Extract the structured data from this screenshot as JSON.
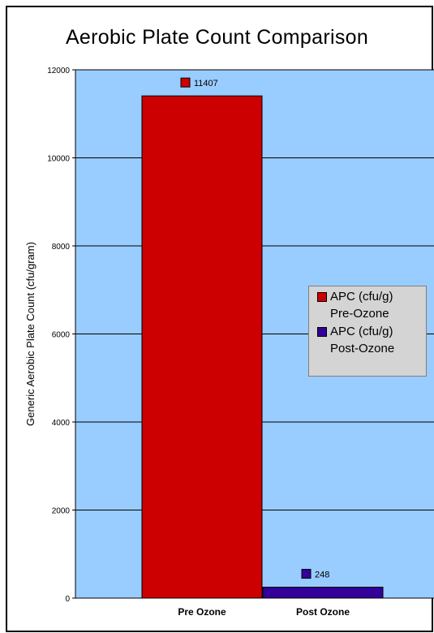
{
  "chart_data": {
    "type": "bar",
    "title": "Aerobic Plate Count Comparison",
    "xlabel": "",
    "ylabel": "Generic Aerobic Plate Count (cfu/gram)",
    "categories": [
      "Pre Ozone",
      "Post Ozone"
    ],
    "series": [
      {
        "name": "APC (cfu/g) Pre-Ozone",
        "values": [
          11407,
          null
        ],
        "color": "#cc0000"
      },
      {
        "name": "APC (cfu/g) Post-Ozone",
        "values": [
          null,
          248
        ],
        "color": "#330099"
      }
    ],
    "ylim": [
      0,
      12000
    ],
    "yticks": [
      0,
      2000,
      4000,
      6000,
      8000,
      10000,
      12000
    ],
    "grid": true,
    "legend_position": "right",
    "plot_background": "#99ccff"
  }
}
